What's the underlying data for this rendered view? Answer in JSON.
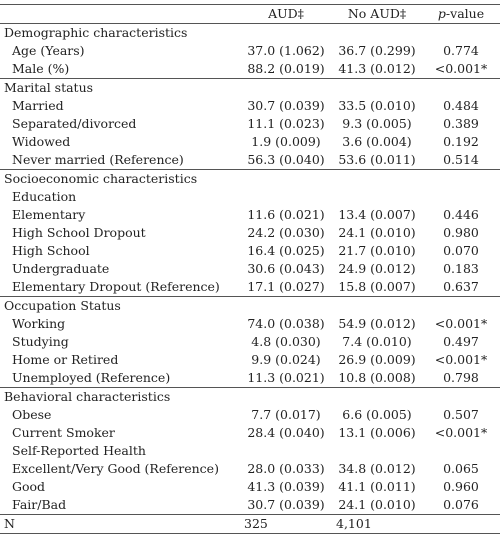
{
  "table": {
    "header": [
      "AUD‡",
      "No AUD‡",
      "p-value"
    ],
    "sections": [
      {
        "title": "Demographic characteristics",
        "rows": [
          {
            "label": "Age (Years)",
            "cells": [
              "37.0 (1.062)",
              "36.7 (0.299)",
              "0.774"
            ]
          },
          {
            "label": "Male (%)",
            "cells": [
              "88.2 (0.019)",
              "41.3 (0.012)",
              "<0.001*"
            ]
          }
        ]
      },
      {
        "title": "Marital status",
        "rows": [
          {
            "label": "Married",
            "cells": [
              "30.7 (0.039)",
              "33.5 (0.010)",
              "0.484"
            ]
          },
          {
            "label": "Separated/divorced",
            "cells": [
              "11.1 (0.023)",
              "9.3 (0.005)",
              "0.389"
            ]
          },
          {
            "label": "Widowed",
            "cells": [
              "1.9 (0.009)",
              "3.6 (0.004)",
              "0.192"
            ]
          },
          {
            "label": "Never married (Reference)",
            "cells": [
              "56.3 (0.040)",
              "53.6 (0.011)",
              "0.514"
            ]
          }
        ]
      },
      {
        "title": "Socioeconomic characteristics",
        "rows": [
          {
            "label": "Education"
          },
          {
            "label": "Elementary",
            "cells": [
              "11.6 (0.021)",
              "13.4 (0.007)",
              "0.446"
            ]
          },
          {
            "label": "High School Dropout",
            "cells": [
              "24.2 (0.030)",
              "24.1 (0.010)",
              "0.980"
            ]
          },
          {
            "label": "High School",
            "cells": [
              "16.4 (0.025)",
              "21.7 (0.010)",
              "0.070"
            ]
          },
          {
            "label": "Undergraduate",
            "cells": [
              "30.6 (0.043)",
              "24.9 (0.012)",
              "0.183"
            ]
          },
          {
            "label": "Elementary Dropout (Reference)",
            "cells": [
              "17.1 (0.027)",
              "15.8 (0.007)",
              "0.637"
            ]
          }
        ]
      },
      {
        "title": "Occupation Status",
        "rows": [
          {
            "label": "Working",
            "cells": [
              "74.0 (0.038)",
              "54.9 (0.012)",
              "<0.001*"
            ]
          },
          {
            "label": "Studying",
            "cells": [
              "4.8 (0.030)",
              "7.4 (0.010)",
              "0.497"
            ]
          },
          {
            "label": "Home or Retired",
            "cells": [
              "9.9 (0.024)",
              "26.9 (0.009)",
              "<0.001*"
            ]
          },
          {
            "label": "Unemployed (Reference)",
            "cells": [
              "11.3 (0.021)",
              "10.8 (0.008)",
              "0.798"
            ]
          }
        ]
      },
      {
        "title": "Behavioral characteristics",
        "rows": [
          {
            "label": "Obese",
            "cells": [
              "7.7 (0.017)",
              "6.6 (0.005)",
              "0.507"
            ]
          },
          {
            "label": "Current Smoker",
            "cells": [
              "28.4 (0.040)",
              "13.1 (0.006)",
              "<0.001*"
            ]
          },
          {
            "label": "Self-Reported Health"
          },
          {
            "label": "Excellent/Very Good (Reference)",
            "cells": [
              "28.0 (0.033)",
              "34.8 (0.012)",
              "0.065"
            ]
          },
          {
            "label": "Good",
            "cells": [
              "41.3 (0.039)",
              "41.1 (0.011)",
              "0.960"
            ]
          },
          {
            "label": "Fair/Bad",
            "cells": [
              "30.7 (0.039)",
              "24.1 (0.010)",
              "0.076"
            ]
          }
        ]
      }
    ],
    "footer": {
      "label": "N",
      "cells": [
        "325",
        "4,101"
      ]
    }
  }
}
